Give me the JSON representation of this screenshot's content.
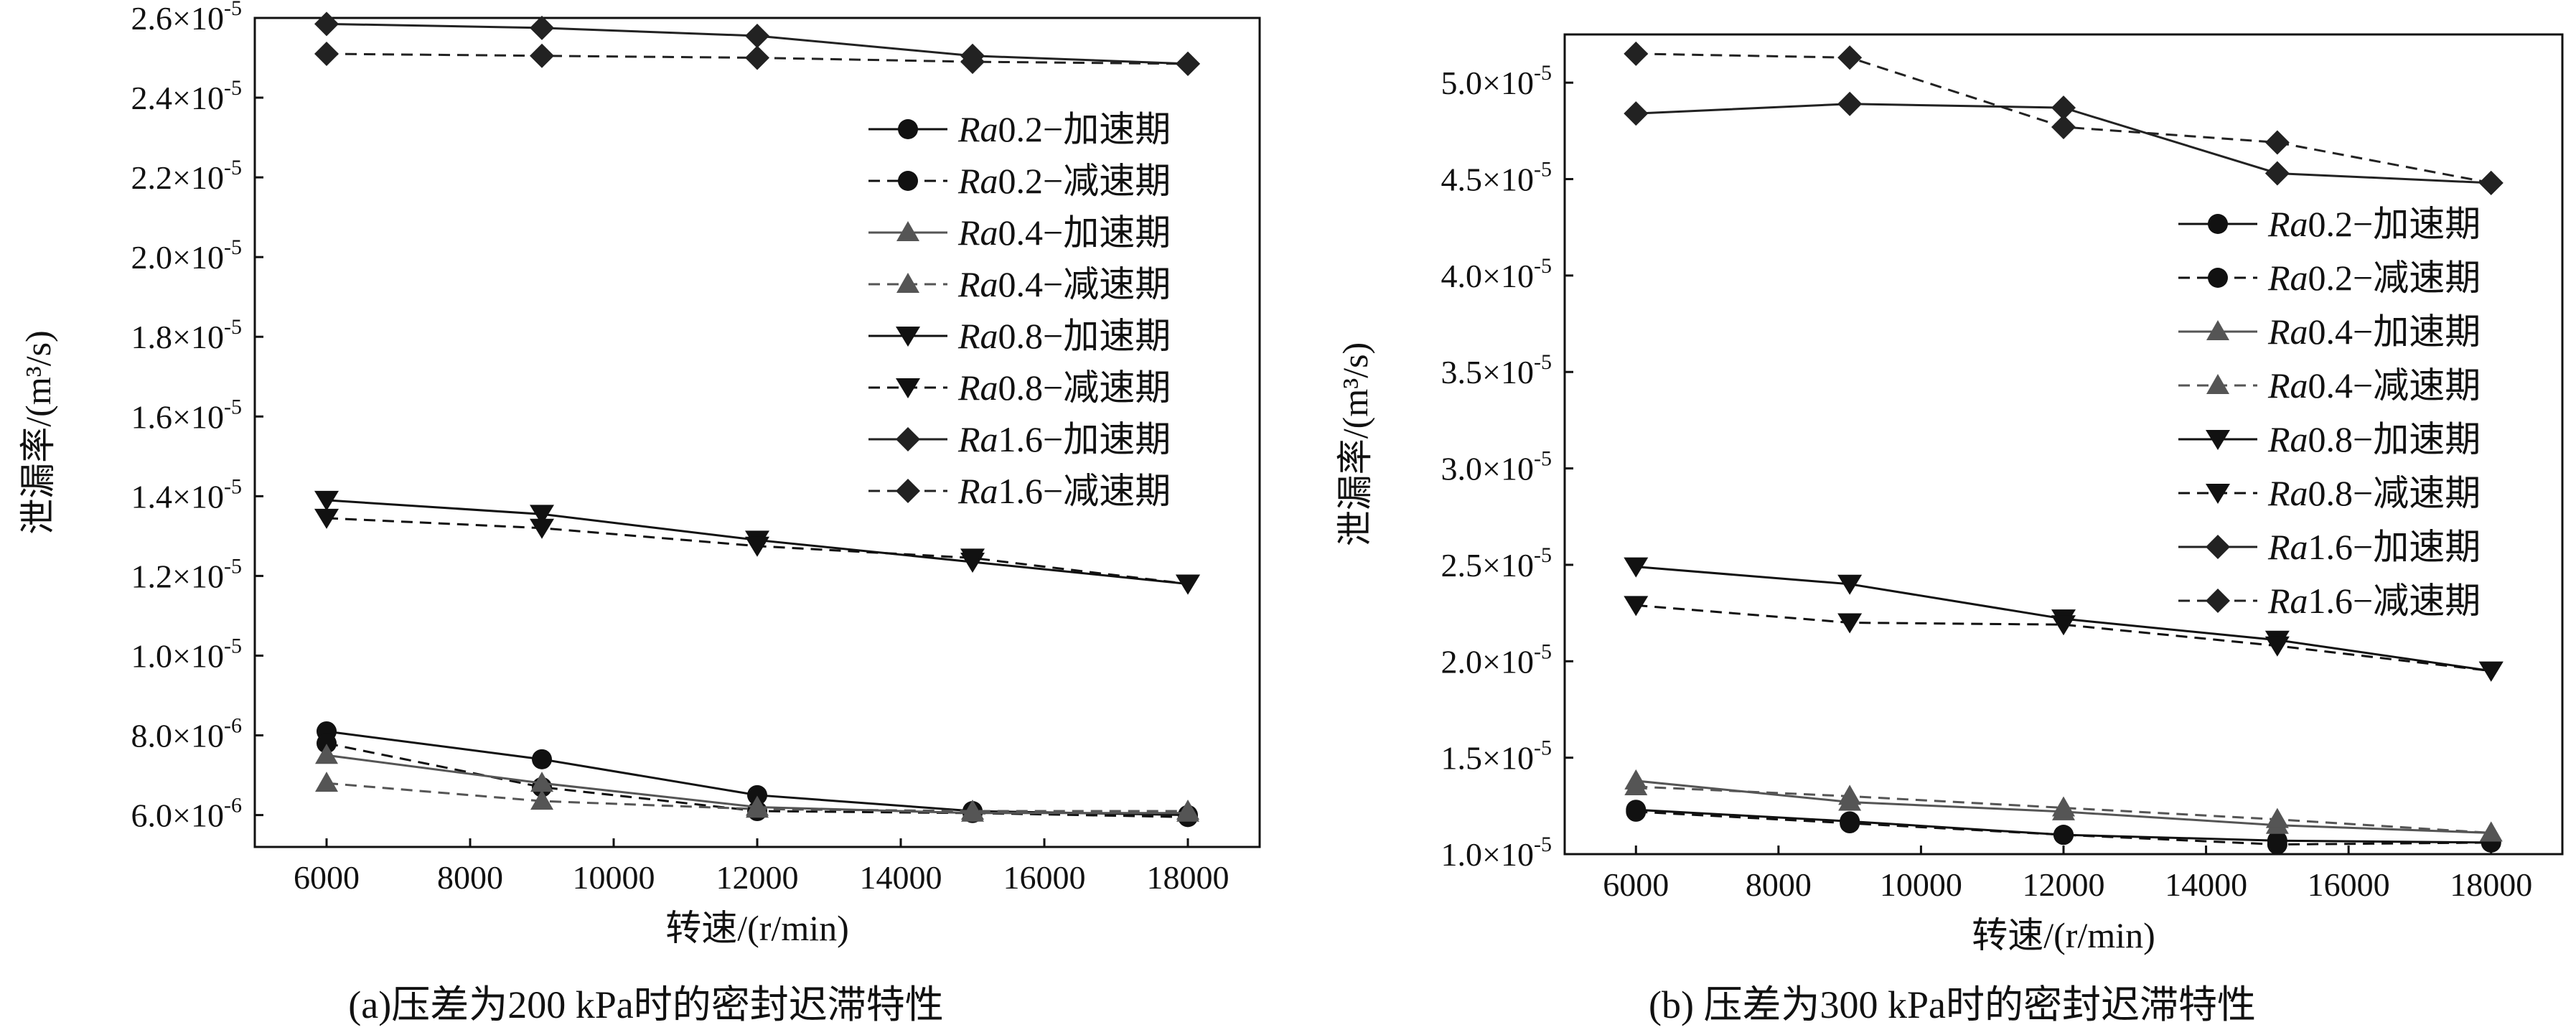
{
  "figure": {
    "caption_a": "(a)压差为200 kPa时的密封迟滞特性",
    "caption_b": "(b) 压差为300 kPa时的密封迟滞特性"
  },
  "chart_data": [
    {
      "type": "line",
      "xlabel": "转速/(r/min)",
      "ylabel": "泄漏率/(m³/s)",
      "x": [
        6000,
        9000,
        12000,
        15000,
        18000
      ],
      "xlim": [
        5000,
        19000
      ],
      "xticks": [
        "6000",
        "8000",
        "10000",
        "12000",
        "14000",
        "16000",
        "18000"
      ],
      "ylim": [
        5.2e-06,
        2.6e-05
      ],
      "yticks": [
        {
          "m": "6.0",
          "e": "-6",
          "v": 6e-06
        },
        {
          "m": "8.0",
          "e": "-6",
          "v": 8e-06
        },
        {
          "m": "1.0",
          "e": "-5",
          "v": 1e-05
        },
        {
          "m": "1.2",
          "e": "-5",
          "v": 1.2e-05
        },
        {
          "m": "1.4",
          "e": "-5",
          "v": 1.4e-05
        },
        {
          "m": "1.6",
          "e": "-5",
          "v": 1.6e-05
        },
        {
          "m": "1.8",
          "e": "-5",
          "v": 1.8e-05
        },
        {
          "m": "2.0",
          "e": "-5",
          "v": 2e-05
        },
        {
          "m": "2.2",
          "e": "-5",
          "v": 2.2e-05
        },
        {
          "m": "2.4",
          "e": "-5",
          "v": 2.4e-05
        },
        {
          "m": "2.6",
          "e": "-5",
          "v": 2.6e-05
        }
      ],
      "legend_position": "top-right",
      "series": [
        {
          "ra": "Ra",
          "suffix": "0.2−加速期",
          "marker": "circle",
          "dash": false,
          "color": "#111111",
          "values": [
            8.1e-06,
            7.4e-06,
            6.5e-06,
            6.1e-06,
            6e-06
          ]
        },
        {
          "ra": "Ra",
          "suffix": "0.2−减速期",
          "marker": "circle",
          "dash": true,
          "color": "#111111",
          "values": [
            7.8e-06,
            6.7e-06,
            6.1e-06,
            6.05e-06,
            5.95e-06
          ]
        },
        {
          "ra": "Ra",
          "suffix": "0.4−加速期",
          "marker": "triangle",
          "dash": false,
          "color": "#555555",
          "values": [
            7.5e-06,
            6.8e-06,
            6.2e-06,
            6.05e-06,
            6.05e-06
          ]
        },
        {
          "ra": "Ra",
          "suffix": "0.4−减速期",
          "marker": "triangle",
          "dash": true,
          "color": "#555555",
          "values": [
            6.8e-06,
            6.35e-06,
            6.15e-06,
            6.1e-06,
            6.1e-06
          ]
        },
        {
          "ra": "Ra",
          "suffix": "0.8−加速期",
          "marker": "tri-down",
          "dash": false,
          "color": "#111111",
          "values": [
            1.39e-05,
            1.355e-05,
            1.29e-05,
            1.235e-05,
            1.18e-05
          ]
        },
        {
          "ra": "Ra",
          "suffix": "0.8−减速期",
          "marker": "tri-down",
          "dash": true,
          "color": "#111111",
          "values": [
            1.345e-05,
            1.32e-05,
            1.275e-05,
            1.245e-05,
            1.18e-05
          ]
        },
        {
          "ra": "Ra",
          "suffix": "1.6−加速期",
          "marker": "diamond",
          "dash": false,
          "color": "#222222",
          "values": [
            2.585e-05,
            2.575e-05,
            2.555e-05,
            2.505e-05,
            2.485e-05
          ]
        },
        {
          "ra": "Ra",
          "suffix": "1.6−减速期",
          "marker": "diamond",
          "dash": true,
          "color": "#222222",
          "values": [
            2.51e-05,
            2.505e-05,
            2.5e-05,
            2.49e-05,
            2.485e-05
          ]
        }
      ]
    },
    {
      "type": "line",
      "xlabel": "转速/(r/min)",
      "ylabel": "泄漏率/(m³/s)",
      "x": [
        6000,
        9000,
        12000,
        15000,
        18000
      ],
      "xlim": [
        5000,
        19000
      ],
      "xticks": [
        "6000",
        "8000",
        "10000",
        "12000",
        "14000",
        "16000",
        "18000"
      ],
      "ylim": [
        1e-05,
        5.25e-05
      ],
      "yticks": [
        {
          "m": "1.0",
          "e": "-5",
          "v": 1e-05
        },
        {
          "m": "1.5",
          "e": "-5",
          "v": 1.5e-05
        },
        {
          "m": "2.0",
          "e": "-5",
          "v": 2e-05
        },
        {
          "m": "2.5",
          "e": "-5",
          "v": 2.5e-05
        },
        {
          "m": "3.0",
          "e": "-5",
          "v": 3e-05
        },
        {
          "m": "3.5",
          "e": "-5",
          "v": 3.5e-05
        },
        {
          "m": "4.0",
          "e": "-5",
          "v": 4e-05
        },
        {
          "m": "4.5",
          "e": "-5",
          "v": 4.5e-05
        },
        {
          "m": "5.0",
          "e": "-5",
          "v": 5e-05
        }
      ],
      "legend_position": "right",
      "series": [
        {
          "ra": "Ra",
          "suffix": "0.2−加速期",
          "marker": "circle",
          "dash": false,
          "color": "#111111",
          "values": [
            1.23e-05,
            1.17e-05,
            1.1e-05,
            1.07e-05,
            1.06e-05
          ]
        },
        {
          "ra": "Ra",
          "suffix": "0.2−减速期",
          "marker": "circle",
          "dash": true,
          "color": "#111111",
          "values": [
            1.22e-05,
            1.16e-05,
            1.1e-05,
            1.05e-05,
            1.06e-05
          ]
        },
        {
          "ra": "Ra",
          "suffix": "0.4−加速期",
          "marker": "triangle",
          "dash": false,
          "color": "#555555",
          "values": [
            1.38e-05,
            1.27e-05,
            1.22e-05,
            1.15e-05,
            1.11e-05
          ]
        },
        {
          "ra": "Ra",
          "suffix": "0.4−减速期",
          "marker": "triangle",
          "dash": true,
          "color": "#555555",
          "values": [
            1.35e-05,
            1.3e-05,
            1.24e-05,
            1.18e-05,
            1.11e-05
          ]
        },
        {
          "ra": "Ra",
          "suffix": "0.8−加速期",
          "marker": "tri-down",
          "dash": false,
          "color": "#111111",
          "values": [
            2.49e-05,
            2.4e-05,
            2.22e-05,
            2.11e-05,
            1.95e-05
          ]
        },
        {
          "ra": "Ra",
          "suffix": "0.8−减速期",
          "marker": "tri-down",
          "dash": true,
          "color": "#111111",
          "values": [
            2.29e-05,
            2.2e-05,
            2.19e-05,
            2.08e-05,
            1.95e-05
          ]
        },
        {
          "ra": "Ra",
          "suffix": "1.6−加速期",
          "marker": "diamond",
          "dash": false,
          "color": "#222222",
          "values": [
            4.84e-05,
            4.89e-05,
            4.87e-05,
            4.53e-05,
            4.48e-05
          ]
        },
        {
          "ra": "Ra",
          "suffix": "1.6−减速期",
          "marker": "diamond",
          "dash": true,
          "color": "#222222",
          "values": [
            5.15e-05,
            5.13e-05,
            4.77e-05,
            4.69e-05,
            4.48e-05
          ]
        }
      ]
    }
  ]
}
